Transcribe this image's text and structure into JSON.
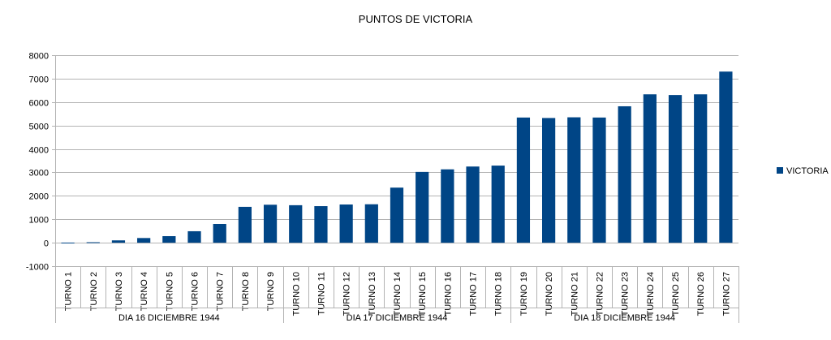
{
  "chart_data": {
    "type": "bar",
    "title": "PUNTOS DE VICTORIA",
    "xlabel": "",
    "ylabel": "",
    "ylim": [
      -1000,
      8000
    ],
    "yticks": [
      -1000,
      0,
      1000,
      2000,
      3000,
      4000,
      5000,
      6000,
      7000,
      8000
    ],
    "grid": true,
    "legend_position": "right",
    "categories": [
      "TURNO 1",
      "TURNO 2",
      "TURNO 3",
      "TURNO 4",
      "TURNO 5",
      "TURNO 6",
      "TURNO 7",
      "TURNO 8",
      "TURNO 9",
      "TURNO 10",
      "TURNO 11",
      "TURNO 12",
      "TURNO 13",
      "TURNO 14",
      "TURNO 15",
      "TURNO 16",
      "TURNO 17",
      "TURNO 18",
      "TURNO 19",
      "TURNO 20",
      "TURNO 21",
      "TURNO 22",
      "TURNO 23",
      "TURNO 24",
      "TURNO 25",
      "TURNO 26",
      "TURNO 27"
    ],
    "groups": [
      {
        "label": "DIA 16 DICIEMBRE 1944",
        "start": 0,
        "end": 8
      },
      {
        "label": "DIA 17 DICIEMBRE 1944",
        "start": 9,
        "end": 17
      },
      {
        "label": "DIA 18 DICIEMBRE 1944",
        "start": 18,
        "end": 26
      }
    ],
    "series": [
      {
        "name": "VICTORIA",
        "color": "#004586",
        "values": [
          5,
          20,
          100,
          200,
          280,
          490,
          800,
          1530,
          1620,
          1600,
          1560,
          1630,
          1640,
          2350,
          3020,
          3130,
          3250,
          3290,
          5340,
          5320,
          5350,
          5340,
          5820,
          6330,
          6300,
          6330,
          7300
        ]
      }
    ]
  }
}
